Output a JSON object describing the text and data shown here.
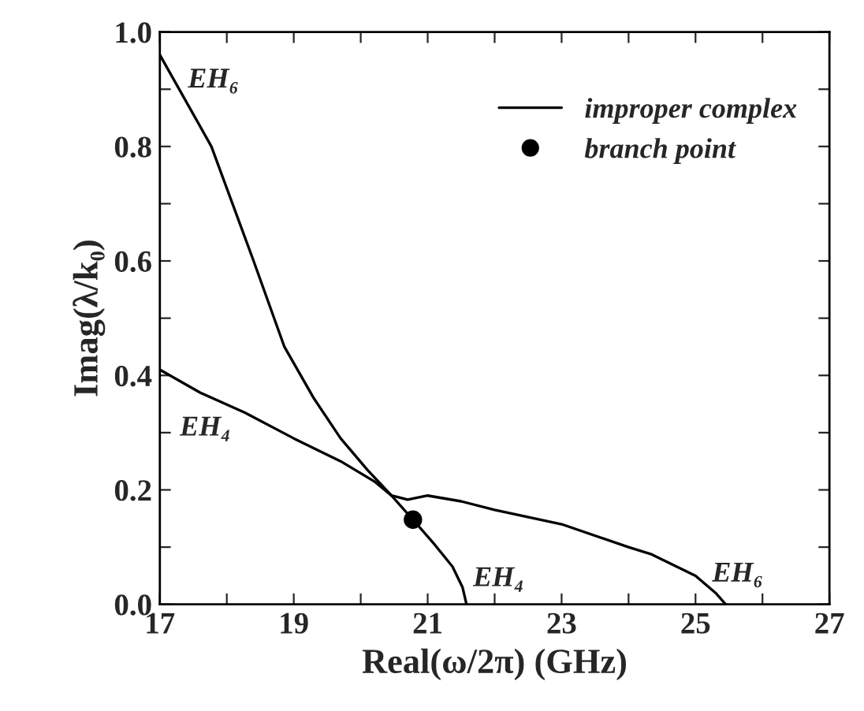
{
  "chart_data": {
    "type": "line",
    "xlabel": "Real(ω/2π) (GHz)",
    "ylabel": "Imag(λ/k₀)",
    "xlim": [
      17,
      27
    ],
    "ylim": [
      0,
      1.0
    ],
    "xticks": [
      17,
      {
        "value": 18,
        "label": null
      },
      19,
      {
        "value": 20,
        "label": null
      },
      21,
      {
        "value": 22,
        "label": null
      },
      23,
      {
        "value": 24,
        "label": null
      },
      25,
      {
        "value": 26,
        "label": null
      },
      27
    ],
    "yticks": [
      {
        "value": 0,
        "label": "0.0"
      },
      {
        "value": 0.1,
        "label": null
      },
      {
        "value": 0.2,
        "label": "0.2"
      },
      {
        "value": 0.3,
        "label": null
      },
      {
        "value": 0.4,
        "label": "0.4"
      },
      {
        "value": 0.5,
        "label": null
      },
      {
        "value": 0.6,
        "label": "0.6"
      },
      {
        "value": 0.7,
        "label": null
      },
      {
        "value": 0.8,
        "label": "0.8"
      },
      {
        "value": 0.9,
        "label": null
      },
      {
        "value": 1.0,
        "label": "1.0"
      }
    ],
    "grid": false,
    "legend": "top right",
    "series": [
      {
        "name": "improper complex",
        "color": "#000000",
        "x": [
          17,
          17.77,
          18.4,
          18.86,
          19.3,
          19.7,
          20.1,
          20.46,
          20.7,
          21.0,
          21.5,
          22,
          23,
          24,
          24.33,
          25,
          25.3,
          25.45
        ],
        "values": [
          0.96,
          0.8,
          0.6,
          0.45,
          0.36,
          0.29,
          0.235,
          0.19,
          0.183,
          0.19,
          0.18,
          0.165,
          0.14,
          0.1,
          0.088,
          0.05,
          0.02,
          0
        ]
      },
      {
        "color": "#000000",
        "x": [
          17,
          17.6,
          18.27,
          19,
          19.7,
          20.2,
          20.46,
          20.78,
          21.1,
          21.37,
          21.52,
          21.58
        ],
        "values": [
          0.41,
          0.37,
          0.335,
          0.29,
          0.25,
          0.215,
          0.19,
          0.148,
          0.105,
          0.066,
          0.03,
          0
        ]
      },
      {
        "name": "branch point",
        "type": "scatter",
        "marker": "circle",
        "color": "#000000",
        "x": [
          20.78
        ],
        "values": [
          0.148
        ]
      }
    ],
    "annotations": [
      "EH₆",
      "EH₄",
      "EH₄",
      "EH₆"
    ]
  }
}
